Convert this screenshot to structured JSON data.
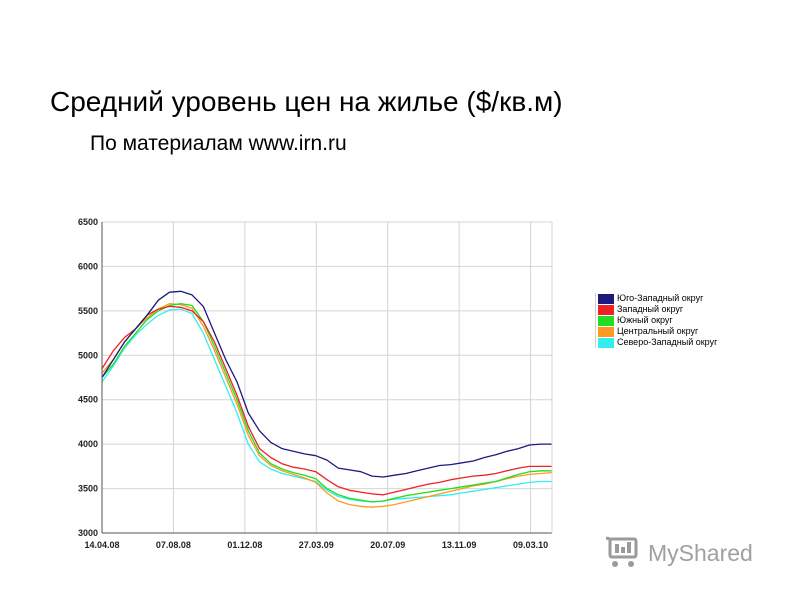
{
  "slide": {
    "title": "Средний уровень цен на жилье ($/кв.м)",
    "subtitle": "По материалам www.irn.ru"
  },
  "watermark": {
    "text": "MyShared"
  },
  "chart_data": {
    "type": "line",
    "title": "",
    "xlabel": "",
    "ylabel": "",
    "ylim": [
      3000,
      6500
    ],
    "yticks": [
      3000,
      3500,
      4000,
      4500,
      5000,
      5500,
      6000,
      6500
    ],
    "xticks": [
      "14.04.08",
      "07.08.08",
      "01.12.08",
      "27.03.09",
      "20.07.09",
      "13.11.09",
      "09.03.10"
    ],
    "x_count": 41,
    "grid": true,
    "legend_position": "right",
    "series": [
      {
        "name": "Юго-Западный округ",
        "color": "#1a1a80",
        "values": [
          4750,
          4950,
          5150,
          5300,
          5450,
          5620,
          5710,
          5720,
          5680,
          5550,
          5250,
          4950,
          4700,
          4350,
          4150,
          4020,
          3950,
          3920,
          3890,
          3870,
          3820,
          3730,
          3710,
          3690,
          3640,
          3630,
          3650,
          3670,
          3700,
          3730,
          3760,
          3770,
          3790,
          3810,
          3850,
          3880,
          3920,
          3950,
          3990,
          4000,
          4000
        ]
      },
      {
        "name": "Западный округ",
        "color": "#ee2222",
        "values": [
          4850,
          5050,
          5200,
          5300,
          5450,
          5520,
          5550,
          5540,
          5500,
          5380,
          5150,
          4850,
          4550,
          4200,
          3950,
          3850,
          3780,
          3740,
          3720,
          3690,
          3600,
          3520,
          3480,
          3460,
          3440,
          3430,
          3460,
          3490,
          3520,
          3550,
          3570,
          3600,
          3620,
          3640,
          3650,
          3670,
          3700,
          3730,
          3750,
          3750,
          3750
        ]
      },
      {
        "name": "Южный округ",
        "color": "#22dd22",
        "values": [
          4750,
          4900,
          5100,
          5250,
          5400,
          5500,
          5560,
          5580,
          5560,
          5380,
          5100,
          4800,
          4500,
          4150,
          3900,
          3780,
          3720,
          3680,
          3650,
          3610,
          3500,
          3430,
          3390,
          3370,
          3350,
          3360,
          3390,
          3420,
          3440,
          3460,
          3480,
          3500,
          3520,
          3540,
          3560,
          3580,
          3620,
          3660,
          3690,
          3700,
          3700
        ]
      },
      {
        "name": "Центральный округ",
        "color": "#ff9922",
        "values": [
          4800,
          4950,
          5150,
          5300,
          5420,
          5520,
          5580,
          5570,
          5530,
          5330,
          5050,
          4750,
          4450,
          4100,
          3870,
          3760,
          3700,
          3660,
          3620,
          3570,
          3450,
          3360,
          3320,
          3300,
          3290,
          3300,
          3320,
          3350,
          3380,
          3410,
          3440,
          3470,
          3500,
          3530,
          3550,
          3580,
          3610,
          3640,
          3660,
          3670,
          3680
        ]
      },
      {
        "name": "Северо-Западный округ",
        "color": "#33eeee",
        "values": [
          4700,
          4880,
          5080,
          5230,
          5350,
          5450,
          5510,
          5520,
          5470,
          5250,
          4950,
          4650,
          4350,
          4000,
          3800,
          3720,
          3670,
          3640,
          3610,
          3580,
          3480,
          3410,
          3380,
          3360,
          3350,
          3360,
          3380,
          3390,
          3400,
          3410,
          3420,
          3430,
          3450,
          3470,
          3490,
          3510,
          3530,
          3550,
          3570,
          3580,
          3580
        ]
      }
    ]
  }
}
